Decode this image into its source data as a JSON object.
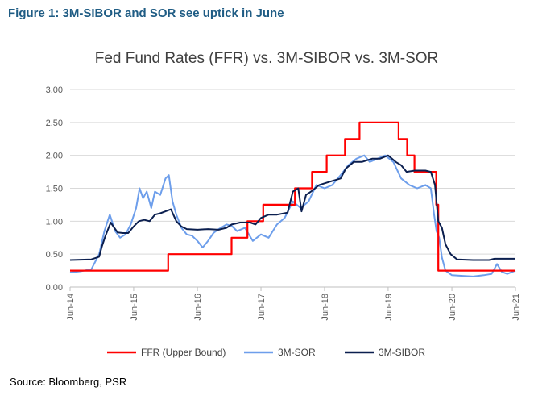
{
  "figure_title": "Figure 1: 3M-SIBOR and SOR see uptick in June",
  "source": "Source: Bloomberg, PSR",
  "colors": {
    "ffr": "#ff0000",
    "sor": "#6d9eeb",
    "sibor": "#0b1f4f",
    "grid": "#d9d9d9",
    "axis": "#bfbfbf"
  },
  "chart_data": {
    "type": "line",
    "title": "Fed Fund Rates (FFR) vs. 3M-SIBOR vs. 3M-SOR",
    "xlabel": "",
    "ylabel": "",
    "ylim": [
      0,
      3
    ],
    "xlim": [
      "2014-06-01",
      "2021-06-01"
    ],
    "grid": true,
    "legend": "bottom",
    "yticks": [
      "0.00",
      "0.50",
      "1.00",
      "1.50",
      "2.00",
      "2.50",
      "3.00"
    ],
    "xticks": [
      {
        "date": "2014-06-01",
        "label": "Jun-14"
      },
      {
        "date": "2015-06-01",
        "label": "Jun-15"
      },
      {
        "date": "2016-06-01",
        "label": "Jun-16"
      },
      {
        "date": "2017-06-01",
        "label": "Jun-17"
      },
      {
        "date": "2018-06-01",
        "label": "Jun-18"
      },
      {
        "date": "2019-06-01",
        "label": "Jun-19"
      },
      {
        "date": "2020-06-01",
        "label": "Jun-20"
      },
      {
        "date": "2021-06-01",
        "label": "Jun-21"
      }
    ],
    "series": [
      {
        "name": "FFR (Upper Bound)",
        "step": true,
        "points": [
          [
            "2014-06-01",
            0.25
          ],
          [
            "2015-12-16",
            0.5
          ],
          [
            "2016-12-14",
            0.75
          ],
          [
            "2017-03-15",
            1.0
          ],
          [
            "2017-06-14",
            1.25
          ],
          [
            "2017-12-13",
            1.5
          ],
          [
            "2018-03-21",
            1.75
          ],
          [
            "2018-06-13",
            2.0
          ],
          [
            "2018-09-26",
            2.25
          ],
          [
            "2018-12-19",
            2.5
          ],
          [
            "2019-07-31",
            2.25
          ],
          [
            "2019-09-18",
            2.0
          ],
          [
            "2019-10-30",
            1.75
          ],
          [
            "2020-03-03",
            1.25
          ],
          [
            "2020-03-15",
            0.25
          ],
          [
            "2021-06-01",
            0.25
          ]
        ]
      },
      {
        "name": "3M-SOR",
        "step": false,
        "points": [
          [
            "2014-06-01",
            0.22
          ],
          [
            "2014-08-01",
            0.24
          ],
          [
            "2014-10-01",
            0.27
          ],
          [
            "2014-11-15",
            0.5
          ],
          [
            "2014-12-15",
            0.85
          ],
          [
            "2015-01-15",
            1.1
          ],
          [
            "2015-02-15",
            0.85
          ],
          [
            "2015-03-15",
            0.75
          ],
          [
            "2015-04-15",
            0.8
          ],
          [
            "2015-05-15",
            0.95
          ],
          [
            "2015-06-15",
            1.2
          ],
          [
            "2015-07-05",
            1.5
          ],
          [
            "2015-07-25",
            1.35
          ],
          [
            "2015-08-15",
            1.45
          ],
          [
            "2015-09-10",
            1.2
          ],
          [
            "2015-10-01",
            1.45
          ],
          [
            "2015-11-01",
            1.4
          ],
          [
            "2015-12-01",
            1.65
          ],
          [
            "2015-12-20",
            1.7
          ],
          [
            "2016-01-10",
            1.3
          ],
          [
            "2016-02-01",
            1.1
          ],
          [
            "2016-03-01",
            0.9
          ],
          [
            "2016-04-01",
            0.8
          ],
          [
            "2016-05-01",
            0.78
          ],
          [
            "2016-06-01",
            0.7
          ],
          [
            "2016-07-01",
            0.6
          ],
          [
            "2016-08-01",
            0.7
          ],
          [
            "2016-09-01",
            0.82
          ],
          [
            "2016-10-01",
            0.88
          ],
          [
            "2016-11-15",
            0.95
          ],
          [
            "2016-12-15",
            0.93
          ],
          [
            "2017-01-15",
            0.85
          ],
          [
            "2017-03-01",
            0.9
          ],
          [
            "2017-04-15",
            0.7
          ],
          [
            "2017-06-01",
            0.8
          ],
          [
            "2017-07-15",
            0.75
          ],
          [
            "2017-09-01",
            0.95
          ],
          [
            "2017-10-15",
            1.05
          ],
          [
            "2017-12-01",
            1.3
          ],
          [
            "2018-01-15",
            1.2
          ],
          [
            "2018-03-01",
            1.3
          ],
          [
            "2018-04-15",
            1.55
          ],
          [
            "2018-06-01",
            1.5
          ],
          [
            "2018-07-15",
            1.55
          ],
          [
            "2018-09-01",
            1.7
          ],
          [
            "2018-10-15",
            1.85
          ],
          [
            "2018-12-01",
            1.95
          ],
          [
            "2019-01-15",
            2.0
          ],
          [
            "2019-02-15",
            1.9
          ],
          [
            "2019-04-01",
            1.95
          ],
          [
            "2019-05-15",
            2.0
          ],
          [
            "2019-07-01",
            1.9
          ],
          [
            "2019-08-15",
            1.65
          ],
          [
            "2019-10-01",
            1.55
          ],
          [
            "2019-11-15",
            1.5
          ],
          [
            "2020-01-01",
            1.55
          ],
          [
            "2020-02-01",
            1.5
          ],
          [
            "2020-02-20",
            1.1
          ],
          [
            "2020-03-05",
            0.85
          ],
          [
            "2020-03-20",
            0.75
          ],
          [
            "2020-04-05",
            0.45
          ],
          [
            "2020-04-25",
            0.25
          ],
          [
            "2020-06-01",
            0.18
          ],
          [
            "2020-08-01",
            0.17
          ],
          [
            "2020-10-01",
            0.16
          ],
          [
            "2020-12-01",
            0.18
          ],
          [
            "2021-01-15",
            0.2
          ],
          [
            "2021-02-15",
            0.35
          ],
          [
            "2021-03-15",
            0.23
          ],
          [
            "2021-04-15",
            0.2
          ],
          [
            "2021-06-01",
            0.25
          ]
        ]
      },
      {
        "name": "3M-SIBOR",
        "step": false,
        "points": [
          [
            "2014-06-01",
            0.41
          ],
          [
            "2014-10-01",
            0.42
          ],
          [
            "2014-11-15",
            0.46
          ],
          [
            "2014-12-01",
            0.62
          ],
          [
            "2014-12-20",
            0.77
          ],
          [
            "2015-01-20",
            0.98
          ],
          [
            "2015-02-10",
            0.9
          ],
          [
            "2015-03-01",
            0.83
          ],
          [
            "2015-04-01",
            0.82
          ],
          [
            "2015-05-01",
            0.82
          ],
          [
            "2015-06-01",
            0.92
          ],
          [
            "2015-07-01",
            1.0
          ],
          [
            "2015-08-01",
            1.02
          ],
          [
            "2015-09-01",
            1.0
          ],
          [
            "2015-10-01",
            1.1
          ],
          [
            "2015-11-01",
            1.12
          ],
          [
            "2015-12-01",
            1.15
          ],
          [
            "2016-01-01",
            1.18
          ],
          [
            "2016-02-01",
            1.0
          ],
          [
            "2016-03-01",
            0.92
          ],
          [
            "2016-04-01",
            0.88
          ],
          [
            "2016-06-01",
            0.87
          ],
          [
            "2016-08-01",
            0.88
          ],
          [
            "2016-10-01",
            0.87
          ],
          [
            "2016-11-15",
            0.9
          ],
          [
            "2016-12-15",
            0.95
          ],
          [
            "2017-02-01",
            0.98
          ],
          [
            "2017-04-01",
            0.98
          ],
          [
            "2017-05-01",
            0.95
          ],
          [
            "2017-06-01",
            1.05
          ],
          [
            "2017-07-15",
            1.1
          ],
          [
            "2017-09-01",
            1.1
          ],
          [
            "2017-11-01",
            1.13
          ],
          [
            "2017-12-01",
            1.45
          ],
          [
            "2018-01-01",
            1.5
          ],
          [
            "2018-01-20",
            1.15
          ],
          [
            "2018-02-15",
            1.4
          ],
          [
            "2018-03-15",
            1.45
          ],
          [
            "2018-05-01",
            1.55
          ],
          [
            "2018-07-01",
            1.6
          ],
          [
            "2018-09-01",
            1.65
          ],
          [
            "2018-10-01",
            1.8
          ],
          [
            "2018-11-15",
            1.9
          ],
          [
            "2019-01-01",
            1.9
          ],
          [
            "2019-03-01",
            1.95
          ],
          [
            "2019-04-15",
            1.95
          ],
          [
            "2019-06-01",
            2.0
          ],
          [
            "2019-07-15",
            1.9
          ],
          [
            "2019-08-15",
            1.85
          ],
          [
            "2019-09-15",
            1.75
          ],
          [
            "2019-11-01",
            1.77
          ],
          [
            "2020-01-01",
            1.77
          ],
          [
            "2020-02-01",
            1.75
          ],
          [
            "2020-02-25",
            1.55
          ],
          [
            "2020-03-15",
            1.0
          ],
          [
            "2020-04-05",
            0.9
          ],
          [
            "2020-04-25",
            0.65
          ],
          [
            "2020-05-25",
            0.5
          ],
          [
            "2020-07-01",
            0.42
          ],
          [
            "2020-10-01",
            0.41
          ],
          [
            "2021-01-01",
            0.41
          ],
          [
            "2021-02-01",
            0.43
          ],
          [
            "2021-06-01",
            0.43
          ]
        ]
      }
    ]
  }
}
